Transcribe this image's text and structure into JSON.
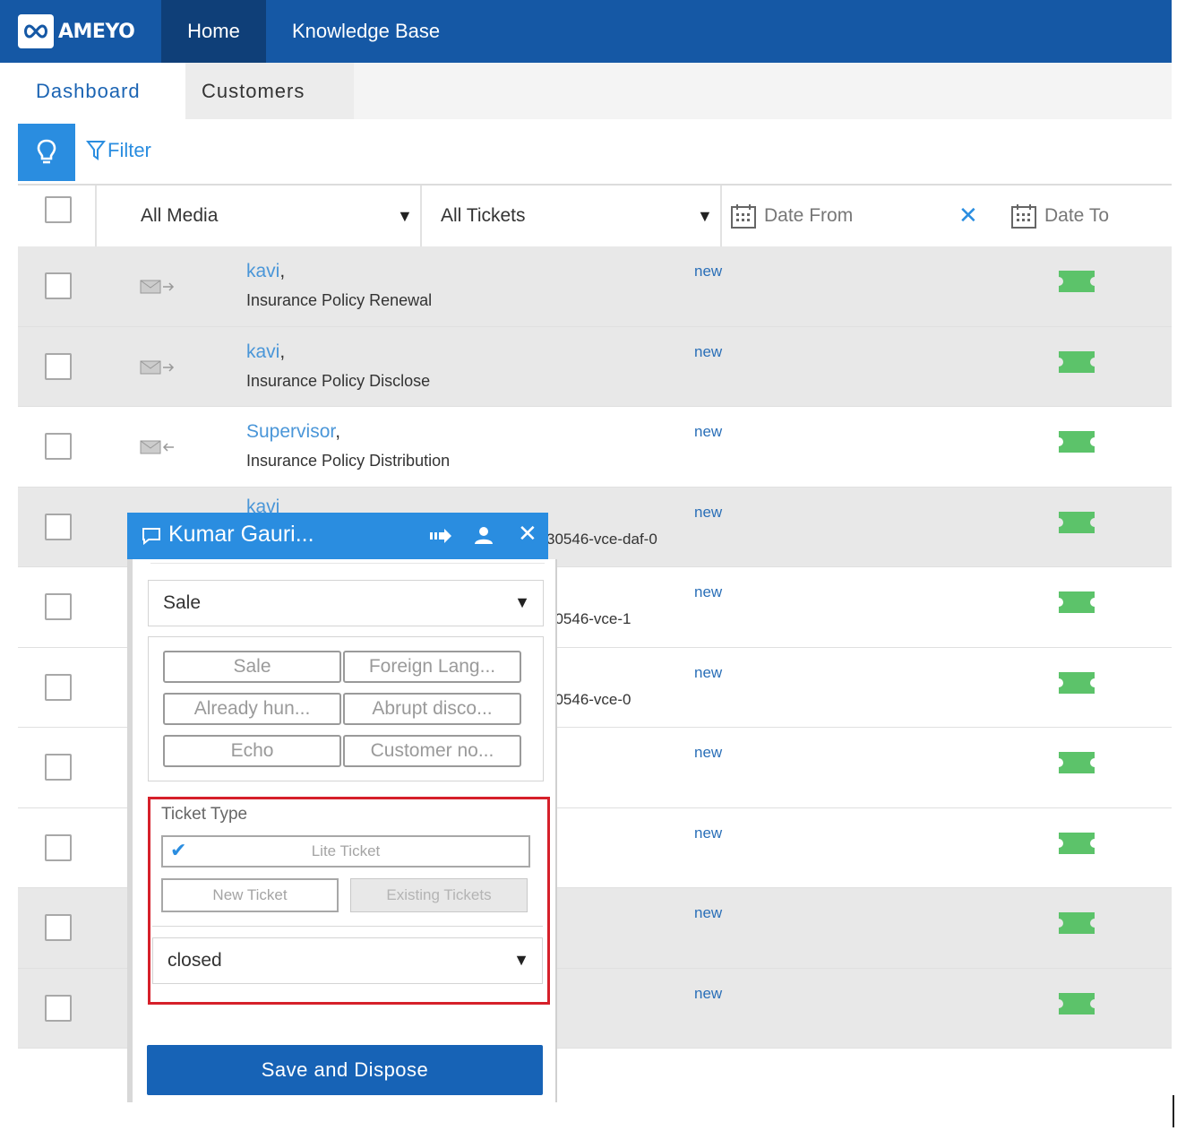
{
  "app": {
    "logo_text": "AMEYO"
  },
  "topnav": {
    "home": "Home",
    "knowledge_base": "Knowledge Base"
  },
  "subnav": {
    "dashboard": "Dashboard",
    "customers": "Customers"
  },
  "toolbar": {
    "filter_label": "Filter"
  },
  "filters": {
    "media": "All Media",
    "tickets": "All Tickets",
    "date_from": "Date From",
    "date_to": "Date To",
    "clear_icon": "close-icon"
  },
  "rows": [
    {
      "name": "kavi",
      "subject": "Insurance Policy Renewal",
      "id": "",
      "status": "new",
      "direction": "outgoing"
    },
    {
      "name": "kavi",
      "subject": "Insurance Policy Disclose",
      "id": "",
      "status": "new",
      "direction": "outgoing"
    },
    {
      "name": "Supervisor",
      "subject": "Insurance Policy Distribution",
      "id": "",
      "status": "new",
      "direction": "incoming"
    },
    {
      "name": "kavi",
      "subject": "",
      "id": "30546-vce-daf-0",
      "status": "new",
      "direction": ""
    },
    {
      "name": "",
      "subject": "",
      "id": "30546-vce-1",
      "status": "new",
      "direction": ""
    },
    {
      "name": "",
      "subject": "",
      "id": "30546-vce-0",
      "status": "new",
      "direction": ""
    },
    {
      "name": "",
      "subject": "",
      "id": "",
      "status": "new",
      "direction": ""
    },
    {
      "name": "",
      "subject": "",
      "id": "",
      "status": "new",
      "direction": ""
    },
    {
      "name": "",
      "subject": "",
      "id": "",
      "status": "new",
      "direction": ""
    },
    {
      "name": "",
      "subject": "",
      "id": "",
      "status": "new",
      "direction": ""
    }
  ],
  "popup": {
    "title": "Kumar Gauri...",
    "disposition_select": "Sale",
    "disposition_buttons": [
      "Sale",
      "Foreign Lang...",
      "Already hun...",
      "Abrupt disco...",
      "Echo",
      "Customer no..."
    ],
    "ticket_type_label": "Ticket Type",
    "lite_ticket": "Lite Ticket",
    "new_ticket": "New Ticket",
    "existing_tickets": "Existing Tickets",
    "status_select": "closed",
    "save_button": "Save and Dispose"
  },
  "colors": {
    "nav_bg": "#1558a5",
    "nav_active": "#0f3f78",
    "accent": "#2a8de0",
    "ticket_icon": "#5cc36a",
    "highlight": "#d6202a",
    "save_bg": "#1763b6"
  }
}
